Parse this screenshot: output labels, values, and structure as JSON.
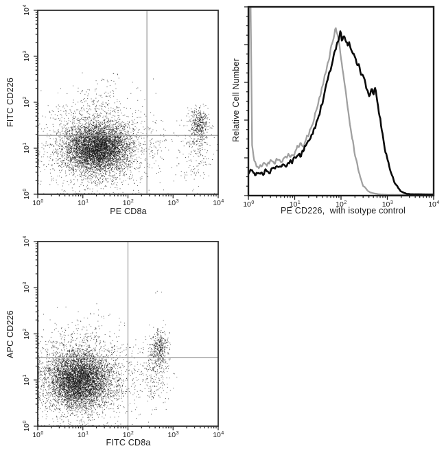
{
  "page": {
    "background": "#ffffff"
  },
  "colors": {
    "frame": "#2e2e2e",
    "hist_frame": "#1a1a1a",
    "quadrant_line": "#8d8d8d",
    "dots": "#161616",
    "hist_black": "#0a0a0a",
    "hist_gray": "#a0a0a0",
    "text": "#1b1b1b"
  },
  "chart_data": [
    {
      "id": "scatter-fitc-cd226-vs-pe-cd8a",
      "type": "scatter",
      "xlabel": "PE CD8a",
      "ylabel": "FITC CD226",
      "xlim_log": [
        0,
        4
      ],
      "ylim_log": [
        0,
        4
      ],
      "tick_exponents": [
        0,
        1,
        2,
        3,
        4
      ],
      "grid": false,
      "quadrant": {
        "x_log": 2.42,
        "y_log": 1.28
      },
      "seed": 42,
      "populations": [
        {
          "name": "cd8neg-main",
          "center": [
            1.32,
            1.0
          ],
          "sd": [
            0.36,
            0.26
          ],
          "count": 5200
        },
        {
          "name": "cd8neg-halo",
          "center": [
            1.22,
            1.05
          ],
          "sd": [
            0.62,
            0.52
          ],
          "count": 1500
        },
        {
          "name": "cd8neg-upper-wisp",
          "center": [
            1.45,
            1.85
          ],
          "sd": [
            0.28,
            0.3
          ],
          "count": 130
        },
        {
          "name": "cd8pos-cluster",
          "center": [
            3.58,
            1.5
          ],
          "sd": [
            0.1,
            0.18
          ],
          "count": 430
        },
        {
          "name": "cd8pos-tail",
          "center": [
            3.52,
            0.95
          ],
          "sd": [
            0.17,
            0.38
          ],
          "count": 170
        },
        {
          "name": "intermediate-sparse",
          "center": [
            2.75,
            1.0
          ],
          "sd": [
            0.38,
            0.42
          ],
          "count": 110
        },
        {
          "name": "rare-high",
          "center": [
            1.55,
            2.55
          ],
          "sd": [
            0.15,
            0.12
          ],
          "count": 4
        }
      ]
    },
    {
      "id": "histogram-pe-cd226",
      "type": "line",
      "xlabel": "PE CD226,  with isotype control",
      "ylabel": "Relative Cell Number",
      "xlim_log": [
        0,
        4
      ],
      "tick_exponents": [
        0,
        1,
        2,
        3,
        4
      ],
      "grid": false,
      "seed": 7,
      "series": [
        {
          "name": "isotype control",
          "color_key": "hist_gray",
          "points": [
            [
              0.0,
              0.55
            ],
            [
              0.02,
              1.15
            ],
            [
              0.05,
              1.12
            ],
            [
              0.08,
              0.3
            ],
            [
              0.12,
              0.22
            ],
            [
              0.18,
              0.18
            ],
            [
              0.25,
              0.17
            ],
            [
              0.32,
              0.2
            ],
            [
              0.4,
              0.18
            ],
            [
              0.48,
              0.21
            ],
            [
              0.55,
              0.19
            ],
            [
              0.62,
              0.22
            ],
            [
              0.7,
              0.2
            ],
            [
              0.78,
              0.22
            ],
            [
              0.85,
              0.24
            ],
            [
              0.92,
              0.23
            ],
            [
              1.0,
              0.25
            ],
            [
              1.06,
              0.29
            ],
            [
              1.12,
              0.31
            ],
            [
              1.18,
              0.29
            ],
            [
              1.24,
              0.33
            ],
            [
              1.3,
              0.37
            ],
            [
              1.36,
              0.41
            ],
            [
              1.42,
              0.46
            ],
            [
              1.48,
              0.52
            ],
            [
              1.54,
              0.58
            ],
            [
              1.6,
              0.65
            ],
            [
              1.66,
              0.72
            ],
            [
              1.72,
              0.79
            ],
            [
              1.78,
              0.87
            ],
            [
              1.83,
              0.93
            ],
            [
              1.88,
              1.0
            ],
            [
              1.93,
              0.95
            ],
            [
              1.98,
              0.86
            ],
            [
              2.03,
              0.76
            ],
            [
              2.08,
              0.66
            ],
            [
              2.13,
              0.55
            ],
            [
              2.18,
              0.45
            ],
            [
              2.23,
              0.36
            ],
            [
              2.28,
              0.28
            ],
            [
              2.33,
              0.21
            ],
            [
              2.38,
              0.15
            ],
            [
              2.43,
              0.1
            ],
            [
              2.48,
              0.06
            ],
            [
              2.55,
              0.035
            ],
            [
              2.62,
              0.02
            ],
            [
              2.72,
              0.012
            ],
            [
              2.85,
              0.007
            ],
            [
              3.0,
              0.005
            ],
            [
              4.0,
              0.004
            ]
          ]
        },
        {
          "name": "PE CD226",
          "color_key": "hist_black",
          "points": [
            [
              0.0,
              0.13
            ],
            [
              0.05,
              0.16
            ],
            [
              0.1,
              0.14
            ],
            [
              0.16,
              0.12
            ],
            [
              0.22,
              0.145
            ],
            [
              0.3,
              0.13
            ],
            [
              0.38,
              0.15
            ],
            [
              0.46,
              0.14
            ],
            [
              0.54,
              0.16
            ],
            [
              0.62,
              0.17
            ],
            [
              0.7,
              0.18
            ],
            [
              0.78,
              0.17
            ],
            [
              0.86,
              0.19
            ],
            [
              0.94,
              0.2
            ],
            [
              1.0,
              0.22
            ],
            [
              1.06,
              0.25
            ],
            [
              1.12,
              0.23
            ],
            [
              1.18,
              0.26
            ],
            [
              1.25,
              0.3
            ],
            [
              1.32,
              0.33
            ],
            [
              1.4,
              0.38
            ],
            [
              1.48,
              0.44
            ],
            [
              1.56,
              0.51
            ],
            [
              1.63,
              0.59
            ],
            [
              1.7,
              0.67
            ],
            [
              1.77,
              0.75
            ],
            [
              1.84,
              0.83
            ],
            [
              1.9,
              0.89
            ],
            [
              1.95,
              0.93
            ],
            [
              1.99,
              1.0
            ],
            [
              2.02,
              0.92
            ],
            [
              2.06,
              0.94
            ],
            [
              2.1,
              0.92
            ],
            [
              2.14,
              0.89
            ],
            [
              2.18,
              0.91
            ],
            [
              2.22,
              0.87
            ],
            [
              2.26,
              0.85
            ],
            [
              2.3,
              0.83
            ],
            [
              2.34,
              0.79
            ],
            [
              2.38,
              0.77
            ],
            [
              2.42,
              0.74
            ],
            [
              2.46,
              0.71
            ],
            [
              2.5,
              0.69
            ],
            [
              2.54,
              0.65
            ],
            [
              2.58,
              0.62
            ],
            [
              2.62,
              0.6
            ],
            [
              2.66,
              0.63
            ],
            [
              2.7,
              0.6
            ],
            [
              2.73,
              0.64
            ],
            [
              2.76,
              0.6
            ],
            [
              2.8,
              0.53
            ],
            [
              2.84,
              0.46
            ],
            [
              2.88,
              0.39
            ],
            [
              2.92,
              0.33
            ],
            [
              2.96,
              0.27
            ],
            [
              3.0,
              0.22
            ],
            [
              3.05,
              0.16
            ],
            [
              3.1,
              0.12
            ],
            [
              3.16,
              0.08
            ],
            [
              3.22,
              0.05
            ],
            [
              3.3,
              0.025
            ],
            [
              3.4,
              0.012
            ],
            [
              3.5,
              0.008
            ],
            [
              4.0,
              0.006
            ]
          ]
        }
      ]
    },
    {
      "id": "scatter-apc-cd226-vs-fitc-cd8a",
      "type": "scatter",
      "xlabel": "FITC CD8a",
      "ylabel": "APC CD226",
      "xlim_log": [
        0,
        4
      ],
      "ylim_log": [
        0,
        4
      ],
      "tick_exponents": [
        0,
        1,
        2,
        3,
        4
      ],
      "grid": false,
      "quadrant": {
        "x_log": 2.0,
        "y_log": 1.49
      },
      "seed": 99,
      "populations": [
        {
          "name": "cd8neg-main",
          "center": [
            0.92,
            1.0
          ],
          "sd": [
            0.35,
            0.3
          ],
          "count": 5200
        },
        {
          "name": "cd8neg-halo",
          "center": [
            0.95,
            1.05
          ],
          "sd": [
            0.58,
            0.52
          ],
          "count": 1500
        },
        {
          "name": "cd8neg-upper-wisp",
          "center": [
            1.1,
            1.95
          ],
          "sd": [
            0.35,
            0.28
          ],
          "count": 100
        },
        {
          "name": "cd8pos-cluster",
          "center": [
            2.68,
            1.65
          ],
          "sd": [
            0.11,
            0.2
          ],
          "count": 430
        },
        {
          "name": "cd8pos-tail",
          "center": [
            2.62,
            1.05
          ],
          "sd": [
            0.16,
            0.32
          ],
          "count": 170
        },
        {
          "name": "intermediate-sparse",
          "center": [
            2.2,
            1.1
          ],
          "sd": [
            0.28,
            0.38
          ],
          "count": 90
        },
        {
          "name": "rare-high",
          "center": [
            2.67,
            2.92
          ],
          "sd": [
            0.07,
            0.04
          ],
          "count": 3
        }
      ]
    }
  ]
}
